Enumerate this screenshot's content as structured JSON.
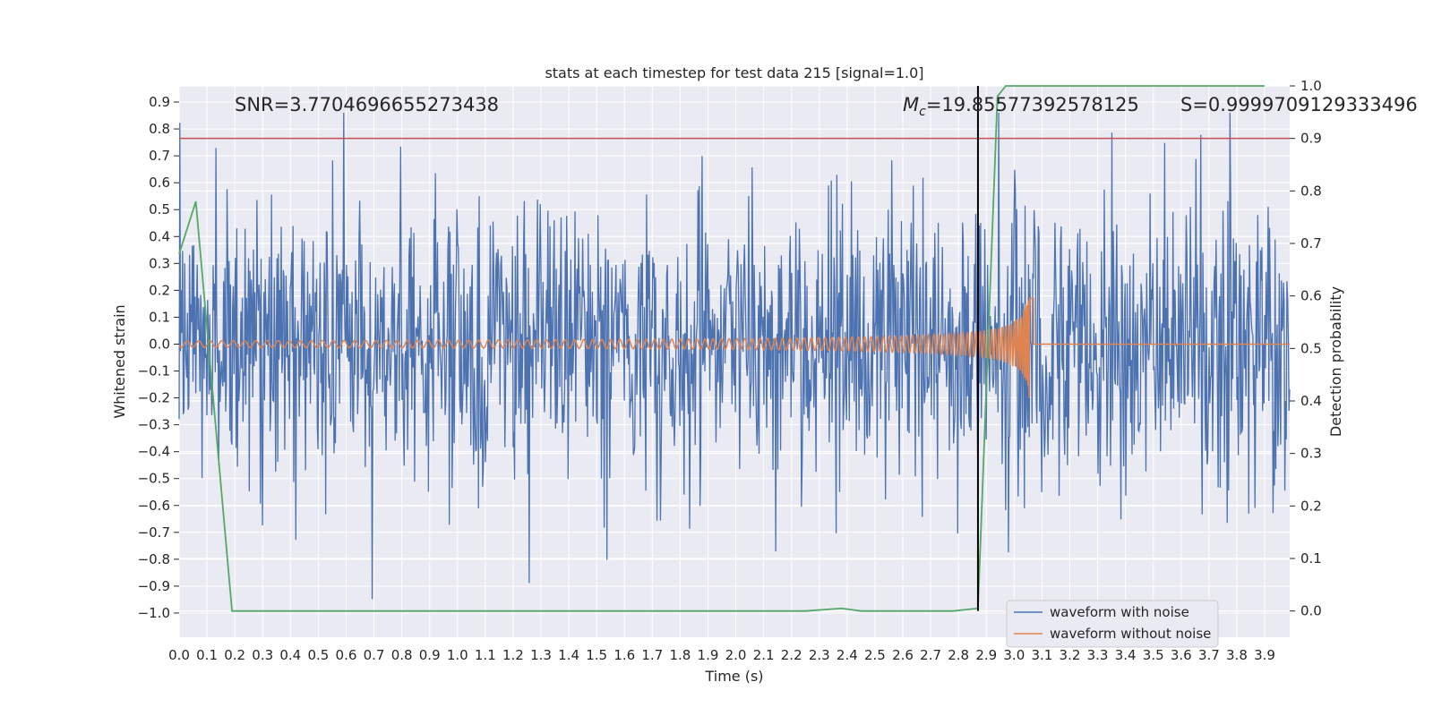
{
  "chart_data": {
    "type": "line",
    "title": "stats at each timestep for test data 215 [signal=1.0]",
    "xlabel": "Time (s)",
    "ylabel": "Whitened strain",
    "y2label": "Detection probability",
    "xlim": [
      0.0,
      3.99
    ],
    "ylim": [
      -1.09,
      0.96
    ],
    "y2lim": [
      -0.05,
      1.0
    ],
    "x_ticks": [
      "0.0",
      "0.1",
      "0.2",
      "0.3",
      "0.4",
      "0.5",
      "0.6",
      "0.7",
      "0.8",
      "0.9",
      "1.0",
      "1.1",
      "1.2",
      "1.3",
      "1.4",
      "1.5",
      "1.6",
      "1.7",
      "1.8",
      "1.9",
      "2.0",
      "2.1",
      "2.2",
      "2.3",
      "2.4",
      "2.5",
      "2.6",
      "2.7",
      "2.8",
      "2.9",
      "3.0",
      "3.1",
      "3.2",
      "3.3",
      "3.4",
      "3.5",
      "3.6",
      "3.7",
      "3.8",
      "3.9"
    ],
    "y_ticks": [
      "0.9",
      "0.8",
      "0.7",
      "0.6",
      "0.5",
      "0.4",
      "0.3",
      "0.2",
      "0.1",
      "0.0",
      "−0.1",
      "−0.2",
      "−0.3",
      "−0.4",
      "−0.5",
      "−0.6",
      "−0.7",
      "−0.8",
      "−0.9",
      "−1.0"
    ],
    "y2_ticks": [
      "1.0",
      "0.9",
      "0.8",
      "0.7",
      "0.6",
      "0.5",
      "0.4",
      "0.3",
      "0.2",
      "0.1",
      "0.0"
    ],
    "annotations": {
      "snr": "SNR=3.7704696655273438",
      "mc_symbol": "M",
      "mc_sub": "c",
      "mc_value": "=19.85577392578125",
      "s": "S=0.9999709129333496"
    },
    "threshold": 0.9,
    "event_time": 2.87,
    "series": [
      {
        "name": "waveform with noise",
        "color": "#4c72b0",
        "axis": "left",
        "kind": "noise",
        "amplitude_range": [
          -0.99,
          0.86
        ],
        "sample_count": 1600
      },
      {
        "name": "waveform without noise",
        "color": "#dd8452",
        "axis": "left",
        "kind": "chirp",
        "merger_time": 3.06,
        "peak_strain": 0.17,
        "min_strain": -0.2
      },
      {
        "name": "detection probability",
        "color": "#55a868",
        "axis": "right",
        "x": [
          0.0,
          0.06,
          0.19,
          0.25,
          1.0,
          2.0,
          2.25,
          2.38,
          2.45,
          2.78,
          2.87,
          2.94,
          2.97,
          3.1,
          3.9
        ],
        "y": [
          0.68,
          0.78,
          0.0,
          0.0,
          0.0,
          0.0,
          0.0,
          0.005,
          0.0,
          0.0,
          0.005,
          0.98,
          1.0,
          1.0,
          1.0
        ]
      }
    ],
    "legend": {
      "placement": "lower-right",
      "items": [
        "waveform with noise",
        "waveform without noise"
      ]
    }
  }
}
